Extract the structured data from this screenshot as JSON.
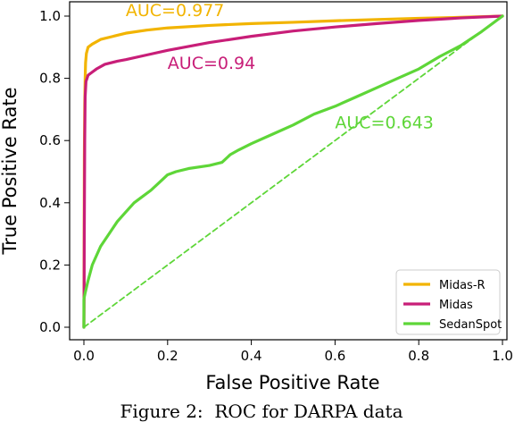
{
  "caption": "Figure 2:  ROC for DARPA data",
  "colors": {
    "midas_r": "#f2b400",
    "midas": "#c81e78",
    "sedanspot": "#5ed638"
  },
  "chart_data": {
    "type": "line",
    "title": "",
    "xlabel": "False Positive Rate",
    "ylabel": "True Positive Rate",
    "xlim": [
      0,
      1
    ],
    "ylim": [
      0,
      1
    ],
    "xticks": [
      0.0,
      0.2,
      0.4,
      0.6,
      0.8,
      1.0
    ],
    "yticks": [
      0.0,
      0.2,
      0.4,
      0.6,
      0.8,
      1.0
    ],
    "xtick_labels": [
      "0.0",
      "0.2",
      "0.4",
      "0.6",
      "0.8",
      "1.0"
    ],
    "ytick_labels": [
      "0.0",
      "0.2",
      "0.4",
      "0.6",
      "0.8",
      "1.0"
    ],
    "grid": false,
    "legend": {
      "position": "bottom-right"
    },
    "series": [
      {
        "name": "Midas-R",
        "color": "#f2b400",
        "x": [
          0,
          0.001,
          0.002,
          0.003,
          0.004,
          0.006,
          0.01,
          0.02,
          0.04,
          0.07,
          0.1,
          0.15,
          0.2,
          0.3,
          0.4,
          0.5,
          0.6,
          0.7,
          0.8,
          0.9,
          1.0
        ],
        "y": [
          0,
          0.55,
          0.72,
          0.8,
          0.85,
          0.88,
          0.9,
          0.91,
          0.925,
          0.935,
          0.945,
          0.955,
          0.962,
          0.97,
          0.976,
          0.98,
          0.985,
          0.989,
          0.993,
          0.996,
          1.0
        ]
      },
      {
        "name": "Midas",
        "color": "#c81e78",
        "x": [
          0,
          0.0005,
          0.001,
          0.002,
          0.003,
          0.005,
          0.01,
          0.02,
          0.03,
          0.05,
          0.08,
          0.1,
          0.15,
          0.2,
          0.3,
          0.4,
          0.5,
          0.6,
          0.7,
          0.8,
          0.9,
          1.0
        ],
        "y": [
          0,
          0.1,
          0.3,
          0.6,
          0.74,
          0.79,
          0.81,
          0.82,
          0.83,
          0.845,
          0.855,
          0.86,
          0.875,
          0.89,
          0.915,
          0.935,
          0.952,
          0.965,
          0.976,
          0.986,
          0.994,
          1.0
        ]
      },
      {
        "name": "SedanSpot",
        "color": "#5ed638",
        "x": [
          0,
          0.0,
          0.003,
          0.01,
          0.02,
          0.04,
          0.06,
          0.08,
          0.1,
          0.12,
          0.14,
          0.16,
          0.18,
          0.2,
          0.22,
          0.25,
          0.3,
          0.33,
          0.35,
          0.37,
          0.4,
          0.45,
          0.5,
          0.55,
          0.6,
          0.65,
          0.7,
          0.75,
          0.8,
          0.85,
          0.9,
          0.95,
          1.0
        ],
        "y": [
          0,
          0.09,
          0.11,
          0.15,
          0.2,
          0.26,
          0.3,
          0.34,
          0.37,
          0.4,
          0.42,
          0.44,
          0.465,
          0.49,
          0.5,
          0.51,
          0.52,
          0.53,
          0.555,
          0.57,
          0.59,
          0.62,
          0.65,
          0.685,
          0.71,
          0.74,
          0.77,
          0.8,
          0.83,
          0.87,
          0.905,
          0.95,
          1.0
        ]
      },
      {
        "name": "",
        "style": "dashed",
        "color": "#5ed638",
        "x": [
          0,
          1
        ],
        "y": [
          0,
          1
        ]
      }
    ],
    "annotations": [
      {
        "text": "AUC=0.977",
        "x": 0.1,
        "y": 1.0,
        "color": "#f2b400"
      },
      {
        "text": "AUC=0.94",
        "x": 0.2,
        "y": 0.83,
        "color": "#c81e78"
      },
      {
        "text": "AUC=0.643",
        "x": 0.6,
        "y": 0.64,
        "color": "#5ed638"
      }
    ]
  }
}
